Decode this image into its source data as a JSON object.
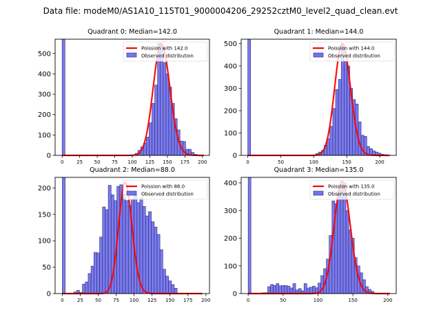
{
  "chart_data": {
    "type": "bar",
    "suptitle": "Data file: modeM0/AS1A10_115T01_9000004206_29252cztM0_level2_quad_clean.evt",
    "subplots": [
      {
        "title": "Quadrant 0: Median=142.0",
        "xlim": [
          -10,
          210
        ],
        "ylim": [
          0,
          570
        ],
        "xticks": [
          0,
          25,
          50,
          75,
          100,
          125,
          150,
          175,
          200
        ],
        "yticks": [
          0,
          100,
          200,
          300,
          400,
          500
        ],
        "bin_width": 4,
        "bins": [
          0,
          104,
          108,
          112,
          116,
          120,
          124,
          128,
          132,
          136,
          140,
          144,
          148,
          152,
          156,
          160,
          164,
          168,
          172,
          176,
          180,
          184,
          188
        ],
        "counts": [
          570,
          10,
          25,
          42,
          60,
          90,
          160,
          255,
          345,
          550,
          540,
          455,
          400,
          335,
          255,
          180,
          125,
          70,
          68,
          30,
          30,
          15,
          5
        ],
        "poisson_mean": 142.0,
        "poisson_peak": 548,
        "poisson_xmax": 202,
        "legend": [
          "Poission with 142.0",
          "Observed distribution"
        ]
      },
      {
        "title": "Quadrant 1: Median=144.0",
        "xlim": [
          -10,
          225
        ],
        "ylim": [
          0,
          520
        ],
        "xticks": [
          0,
          50,
          100,
          150,
          200
        ],
        "yticks": [
          0,
          100,
          200,
          300,
          400,
          500
        ],
        "bin_width": 4.3,
        "bins": [
          0,
          103,
          107.3,
          111.6,
          115.9,
          120.2,
          124.5,
          128.8,
          133.1,
          137.4,
          141.7,
          146,
          150.3,
          154.6,
          158.9,
          163.2,
          167.5,
          171.8,
          176.1,
          180.4,
          184.7,
          189,
          193.3,
          197.6,
          201.9,
          206.2,
          210.5
        ],
        "counts": [
          520,
          8,
          15,
          22,
          45,
          75,
          130,
          210,
          295,
          340,
          495,
          420,
          400,
          300,
          250,
          230,
          150,
          90,
          85,
          40,
          30,
          20,
          15,
          10,
          5,
          3,
          2
        ],
        "poisson_mean": 144.0,
        "poisson_peak": 500,
        "poisson_xmax": 215,
        "legend": [
          "Poission with 144.0",
          "Observed distribution"
        ]
      },
      {
        "title": "Quadrant 2: Median=88.0",
        "xlim": [
          -10,
          205
        ],
        "ylim": [
          0,
          220
        ],
        "xticks": [
          0,
          25,
          50,
          75,
          100,
          125,
          150,
          175,
          200
        ],
        "yticks": [
          0,
          50,
          100,
          150,
          200
        ],
        "bin_width": 4,
        "bins": [
          0,
          16,
          20,
          24,
          28,
          32,
          36,
          40,
          44,
          48,
          52,
          56,
          60,
          64,
          68,
          72,
          76,
          80,
          84,
          88,
          92,
          96,
          100,
          104,
          108,
          112,
          116,
          120,
          124,
          128,
          132,
          136,
          140,
          144,
          148,
          152,
          156
        ],
        "counts": [
          220,
          3,
          6,
          2,
          18,
          22,
          38,
          52,
          78,
          77,
          107,
          164,
          159,
          205,
          187,
          176,
          203,
          206,
          188,
          176,
          167,
          178,
          186,
          172,
          181,
          165,
          147,
          155,
          136,
          126,
          112,
          83,
          46,
          33,
          24,
          17,
          10
        ],
        "poisson_mean": 88.0,
        "poisson_peak": 210,
        "poisson_xmax": 195,
        "legend": [
          "Poission with 88.0",
          "Observed distribution"
        ]
      },
      {
        "title": "Quadrant 3: Median=135.0",
        "xlim": [
          -10,
          212
        ],
        "ylim": [
          0,
          420
        ],
        "xticks": [
          0,
          50,
          100,
          150,
          200
        ],
        "yticks": [
          0,
          100,
          200,
          300,
          400
        ],
        "bin_width": 4,
        "bins": [
          0,
          20,
          24,
          28,
          32,
          36,
          40,
          44,
          48,
          52,
          56,
          60,
          64,
          68,
          72,
          76,
          80,
          84,
          88,
          92,
          96,
          100,
          104,
          108,
          112,
          116,
          120,
          124,
          128,
          132,
          136,
          140,
          144,
          148,
          152,
          156,
          160,
          164,
          168,
          172,
          176,
          180
        ],
        "counts": [
          420,
          3,
          3,
          25,
          33,
          29,
          36,
          28,
          29,
          29,
          27,
          20,
          36,
          13,
          18,
          10,
          36,
          20,
          23,
          27,
          21,
          38,
          65,
          90,
          125,
          210,
          335,
          325,
          370,
          395,
          400,
          300,
          230,
          200,
          130,
          100,
          75,
          50,
          25,
          15,
          8,
          2
        ],
        "poisson_mean": 135.0,
        "poisson_peak": 405,
        "poisson_xmax": 203,
        "legend": [
          "Poission with 135.0",
          "Observed distribution"
        ]
      }
    ]
  },
  "colors": {
    "bar_fill": "#7373ee",
    "bar_edge": "#2b2b6b",
    "poisson": "#ff0000"
  }
}
